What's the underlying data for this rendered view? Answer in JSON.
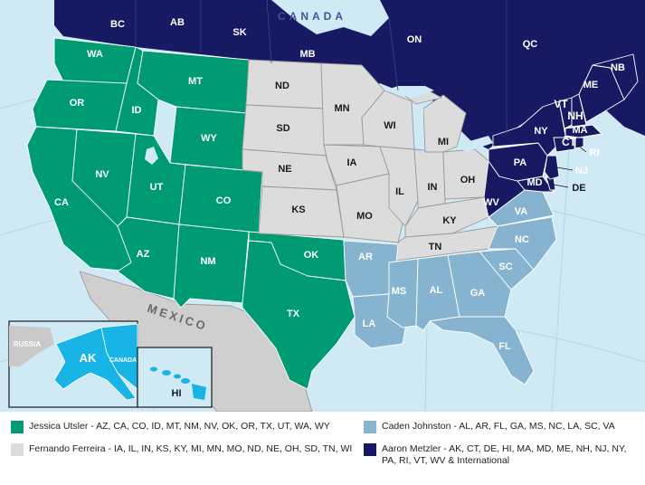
{
  "map": {
    "country_labels": {
      "canada": "CANADA",
      "mexico": "MEXICO",
      "russia": "RUSSIA",
      "canada_inset": "CANADA"
    },
    "states": {
      "WA": "WA",
      "OR": "OR",
      "CA": "CA",
      "ID": "ID",
      "NV": "NV",
      "MT": "MT",
      "WY": "WY",
      "UT": "UT",
      "CO": "CO",
      "AZ": "AZ",
      "NM": "NM",
      "OK": "OK",
      "TX": "TX",
      "ND": "ND",
      "SD": "SD",
      "NE": "NE",
      "KS": "KS",
      "MN": "MN",
      "IA": "IA",
      "MO": "MO",
      "WI": "WI",
      "IL": "IL",
      "MI": "MI",
      "IN": "IN",
      "OH": "OH",
      "KY": "KY",
      "TN": "TN",
      "AR": "AR",
      "LA": "LA",
      "MS": "MS",
      "AL": "AL",
      "GA": "GA",
      "FL": "FL",
      "SC": "SC",
      "NC": "NC",
      "VA": "VA",
      "WV": "WV",
      "PA": "PA",
      "NY": "NY",
      "VT": "VT",
      "NH": "NH",
      "ME": "ME",
      "MA": "MA",
      "CT": "CT",
      "RI": "RI",
      "NJ": "NJ",
      "DE": "DE",
      "MD": "MD",
      "AK": "AK",
      "HI": "HI"
    },
    "provinces": {
      "BC": "BC",
      "AB": "AB",
      "SK": "SK",
      "MB": "MB",
      "ON": "ON",
      "QC": "QC",
      "NB": "NB"
    }
  },
  "colors": {
    "green": "#009a73",
    "gray": "#dcdcdc",
    "light_blue": "#86b4d0",
    "navy": "#171a63",
    "cyan": "#19b4e6",
    "water": "#cfe9f5"
  },
  "legend": [
    {
      "color": "#009a73",
      "text": "Jessica Utsler - AZ, CA, CO, ID, MT, NM, NV, OK, OR, TX, UT, WA, WY"
    },
    {
      "color": "#dcdcdc",
      "text": "Fernando Ferreira - IA, IL, IN, KS, KY, MI, MN, MO, ND, NE, OH, SD, TN, WI"
    },
    {
      "color": "#86b4d0",
      "text": "Caden Johnston - AL, AR, FL, GA, MS, NC, LA, SC, VA"
    },
    {
      "color": "#171a63",
      "text": "Aaron Metzler - AK, CT, DE, HI, MA, MD, ME, NH, NJ, NY, PA, RI, VT, WV & International"
    }
  ]
}
